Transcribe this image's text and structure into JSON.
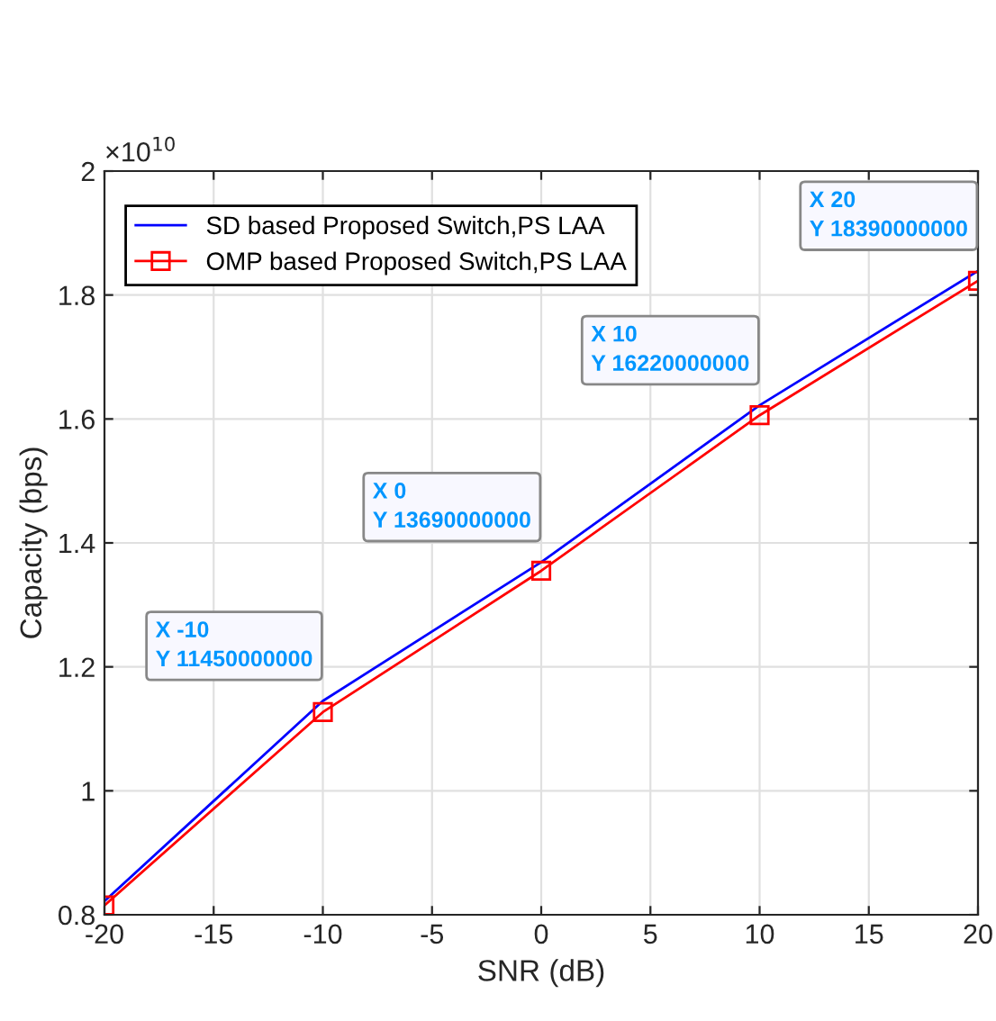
{
  "chart_data": {
    "type": "line",
    "xlabel": "SNR (dB)",
    "ylabel": "Capacity (bps)",
    "x": [
      -20,
      -10,
      0,
      10,
      20
    ],
    "series": [
      {
        "name": "SD based Proposed Switch,PS LAA",
        "color": "#0000ff",
        "marker": "none",
        "values": [
          0.822,
          1.145,
          1.369,
          1.622,
          1.839
        ]
      },
      {
        "name": "OMP based Proposed Switch,PS LAA",
        "color": "#ff0000",
        "marker": "square",
        "values": [
          0.815,
          1.127,
          1.355,
          1.606,
          1.823
        ]
      }
    ],
    "xlim": [
      -20,
      20
    ],
    "xticks": [
      -20,
      -15,
      -10,
      -5,
      0,
      5,
      10,
      15,
      20
    ],
    "ylim": [
      0.8,
      2
    ],
    "yticks": [
      0.8,
      1,
      1.2,
      1.4,
      1.6,
      1.8,
      2
    ],
    "annotations": [
      "×10$^{10}$",
      {
        "text": "X -10\nY 11450000000",
        "x": -10,
        "y": 1.145
      },
      {
        "text": "X 0\nY 13690000000",
        "x": 0,
        "y": 1.369
      },
      {
        "text": "X 10\nY 16220000000",
        "x": 10,
        "y": 1.622
      },
      {
        "text": "X 20\nY 18390000000",
        "x": 20,
        "y": 1.839
      }
    ],
    "grid": true,
    "legend": "top left"
  }
}
